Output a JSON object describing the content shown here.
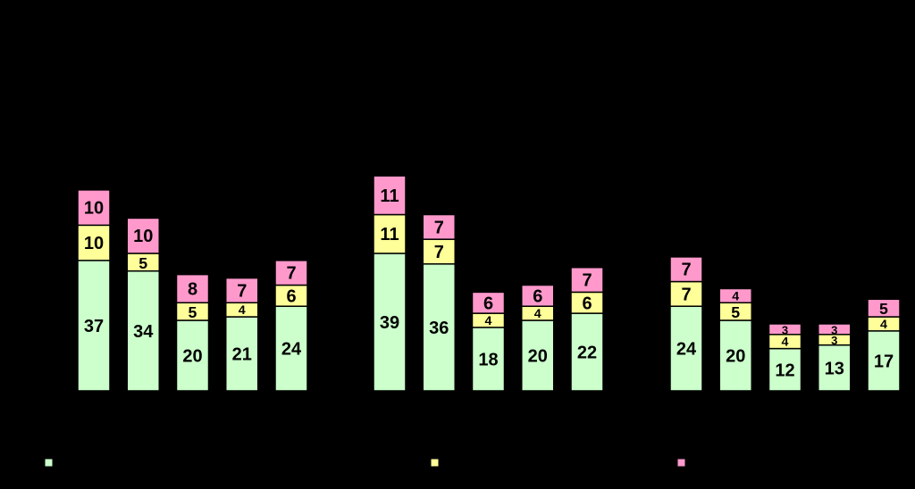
{
  "chart_data": {
    "type": "bar",
    "stacked": true,
    "groups": [
      {
        "bars": [
          {
            "segments": [
              37,
              10,
              10
            ]
          },
          {
            "segments": [
              34,
              5,
              10
            ]
          },
          {
            "segments": [
              20,
              5,
              8
            ]
          },
          {
            "segments": [
              21,
              4,
              7
            ]
          },
          {
            "segments": [
              24,
              6,
              7
            ]
          }
        ]
      },
      {
        "bars": [
          {
            "segments": [
              39,
              11,
              11
            ]
          },
          {
            "segments": [
              36,
              7,
              7
            ]
          },
          {
            "segments": [
              18,
              4,
              6
            ]
          },
          {
            "segments": [
              20,
              4,
              6
            ]
          },
          {
            "segments": [
              22,
              6,
              7
            ]
          }
        ]
      },
      {
        "bars": [
          {
            "segments": [
              24,
              7,
              7
            ]
          },
          {
            "segments": [
              20,
              5,
              4
            ]
          },
          {
            "segments": [
              12,
              4,
              3
            ]
          },
          {
            "segments": [
              13,
              3,
              3
            ]
          },
          {
            "segments": [
              17,
              4,
              5
            ]
          }
        ]
      }
    ],
    "series_colors": [
      "#ccffcc",
      "#ffff99",
      "#ff99cc"
    ],
    "legend": {
      "placement": "bottom",
      "entries": [
        {
          "color": "#ccffcc"
        },
        {
          "color": "#ffff99"
        },
        {
          "color": "#ff99cc"
        }
      ]
    },
    "grid": false,
    "background": "#000000"
  }
}
